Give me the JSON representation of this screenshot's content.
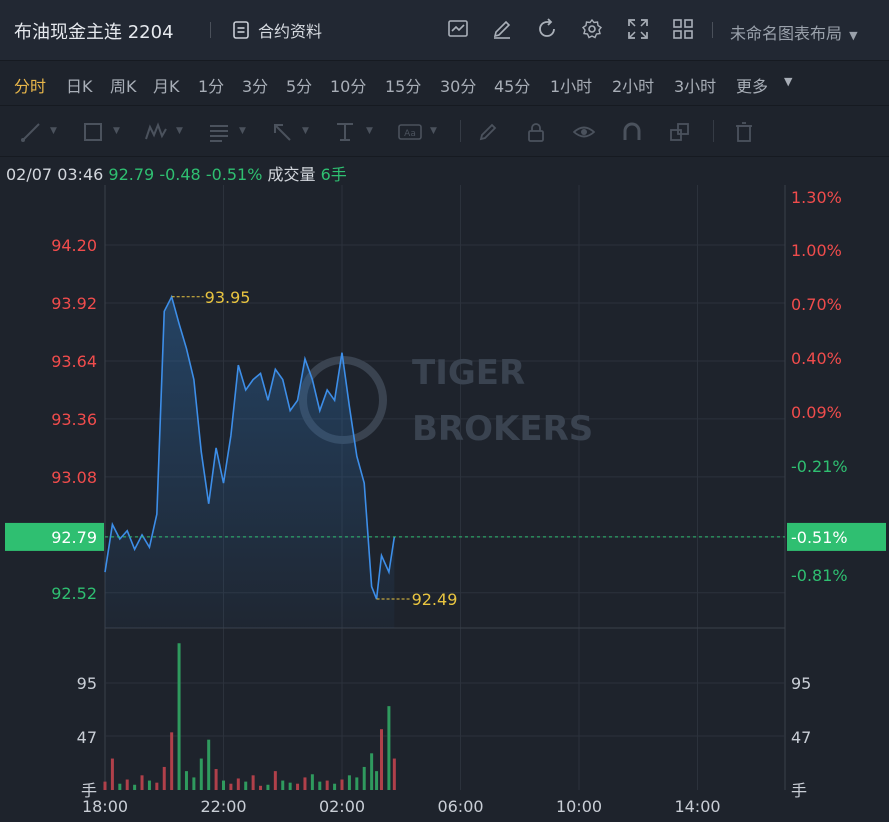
{
  "header": {
    "title": "布油现金主连 2204",
    "contract_label": "合约资料",
    "layout_name": "未命名图表布局",
    "icons": [
      "contract-doc-icon",
      "indicator-icon",
      "edit-icon",
      "refresh-icon",
      "settings-icon",
      "fullscreen-icon",
      "grid-layout-icon",
      "chevron-down-icon"
    ]
  },
  "periods": [
    "分时",
    "日K",
    "周K",
    "月K",
    "1分",
    "3分",
    "5分",
    "10分",
    "15分",
    "30分",
    "45分",
    "1小时",
    "2小时",
    "3小时",
    "更多"
  ],
  "active_period": "分时",
  "drawing_tools": [
    "line-tool-icon",
    "rectangle-tool-icon",
    "pattern-tool-icon",
    "fib-tool-icon",
    "arrow-tool-icon",
    "measure-tool-icon",
    "text-tool-icon",
    "pen-icon",
    "lock-icon",
    "eye-icon",
    "magnet-icon",
    "layers-icon",
    "trash-icon"
  ],
  "info": {
    "date": "02/07 03:46",
    "price": "92.79",
    "change": "-0.48",
    "change_pct": "-0.51%",
    "volume_label": "成交量",
    "volume": "6手"
  },
  "watermark": {
    "line1": "TIGER",
    "line2": "BROKERS"
  },
  "colors": {
    "up": "#f04c4c",
    "down": "#2fbf71",
    "line": "#3d8ee8",
    "marker": "#e8c440",
    "current_bg": "#2fbf71"
  },
  "chart_data": {
    "type": "line",
    "price_ticks_left": [
      "94.20",
      "93.92",
      "93.64",
      "93.36",
      "93.08",
      "92.79",
      "92.52"
    ],
    "price_ticks_right": [
      "1.30%",
      "1.00%",
      "0.70%",
      "0.40%",
      "0.09%",
      "-0.21%",
      "-0.51%",
      "-0.81%"
    ],
    "price_range": [
      92.35,
      94.49
    ],
    "current_price": "92.79",
    "current_pct": "-0.51%",
    "high_label": "93.95",
    "low_label": "92.49",
    "volume_ticks": [
      "95",
      "47",
      "手"
    ],
    "x_ticks": [
      "18:00",
      "22:00",
      "02:00",
      "06:00",
      "10:00",
      "14:00"
    ],
    "series": [
      {
        "time": "18:00",
        "price": 92.62
      },
      {
        "time": "18:15",
        "price": 92.85
      },
      {
        "time": "18:30",
        "price": 92.78
      },
      {
        "time": "18:45",
        "price": 92.82
      },
      {
        "time": "19:00",
        "price": 92.73
      },
      {
        "time": "19:15",
        "price": 92.8
      },
      {
        "time": "19:30",
        "price": 92.74
      },
      {
        "time": "19:45",
        "price": 92.9
      },
      {
        "time": "20:00",
        "price": 93.88
      },
      {
        "time": "20:15",
        "price": 93.95
      },
      {
        "time": "20:30",
        "price": 93.82
      },
      {
        "time": "20:45",
        "price": 93.7
      },
      {
        "time": "21:00",
        "price": 93.55
      },
      {
        "time": "21:15",
        "price": 93.2
      },
      {
        "time": "21:30",
        "price": 92.95
      },
      {
        "time": "21:45",
        "price": 93.22
      },
      {
        "time": "22:00",
        "price": 93.05
      },
      {
        "time": "22:15",
        "price": 93.28
      },
      {
        "time": "22:30",
        "price": 93.62
      },
      {
        "time": "22:45",
        "price": 93.5
      },
      {
        "time": "23:00",
        "price": 93.55
      },
      {
        "time": "23:15",
        "price": 93.58
      },
      {
        "time": "23:30",
        "price": 93.45
      },
      {
        "time": "23:45",
        "price": 93.6
      },
      {
        "time": "00:00",
        "price": 93.55
      },
      {
        "time": "00:15",
        "price": 93.4
      },
      {
        "time": "00:30",
        "price": 93.45
      },
      {
        "time": "00:45",
        "price": 93.65
      },
      {
        "time": "01:00",
        "price": 93.55
      },
      {
        "time": "01:15",
        "price": 93.4
      },
      {
        "time": "01:30",
        "price": 93.5
      },
      {
        "time": "01:45",
        "price": 93.45
      },
      {
        "time": "02:00",
        "price": 93.68
      },
      {
        "time": "02:15",
        "price": 93.42
      },
      {
        "time": "02:30",
        "price": 93.18
      },
      {
        "time": "02:45",
        "price": 93.05
      },
      {
        "time": "03:00",
        "price": 92.55
      },
      {
        "time": "03:10",
        "price": 92.49
      },
      {
        "time": "03:20",
        "price": 92.7
      },
      {
        "time": "03:35",
        "price": 92.62
      },
      {
        "time": "03:46",
        "price": 92.79
      }
    ],
    "volumes": [
      8,
      30,
      6,
      10,
      5,
      14,
      9,
      7,
      22,
      55,
      140,
      18,
      12,
      30,
      48,
      20,
      9,
      6,
      11,
      8,
      14,
      4,
      5,
      18,
      9,
      7,
      6,
      12,
      15,
      8,
      9,
      6,
      10,
      14,
      12,
      22,
      35,
      18,
      58,
      80,
      30
    ]
  }
}
